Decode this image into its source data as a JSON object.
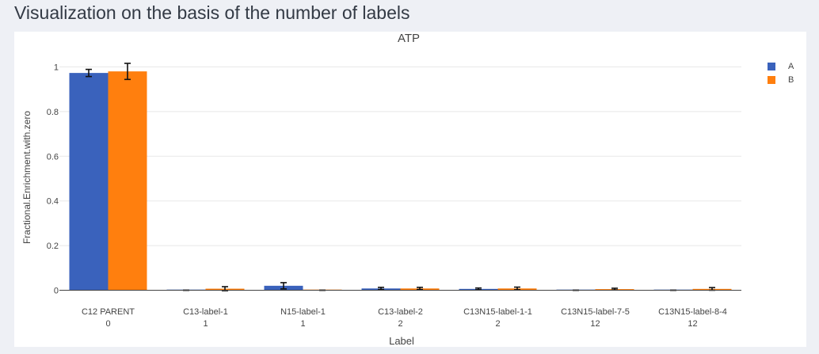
{
  "page": {
    "title": "Visualization on the basis of the number of labels"
  },
  "chart_data": {
    "type": "bar",
    "title": "ATP",
    "xlabel": "Label",
    "ylabel": "Fractional.Enrichment.with.zero",
    "ylim": [
      0,
      1.05
    ],
    "yticks": [
      0,
      0.2,
      0.4,
      0.6,
      0.8,
      1
    ],
    "ytick_labels": [
      "0",
      "0.2",
      "0.4",
      "0.6",
      "0.8",
      "1"
    ],
    "grid": true,
    "legend_position": "top-right",
    "categories": [
      {
        "name": "C12 PARENT",
        "count": "0"
      },
      {
        "name": "C13-label-1",
        "count": "1"
      },
      {
        "name": "N15-label-1",
        "count": "1"
      },
      {
        "name": "C13-label-2",
        "count": "2"
      },
      {
        "name": "C13N15-label-1-1",
        "count": "2"
      },
      {
        "name": "C13N15-label-7-5",
        "count": "12"
      },
      {
        "name": "C13N15-label-8-4",
        "count": "12"
      }
    ],
    "series": [
      {
        "name": "A",
        "color": "#3a62bc",
        "values": [
          0.973,
          0.0,
          0.02,
          0.008,
          0.006,
          0.0,
          0.0
        ],
        "errors": [
          0.016,
          0.0,
          0.014,
          0.005,
          0.004,
          0.0,
          0.0
        ]
      },
      {
        "name": "B",
        "color": "#ff7f0e",
        "values": [
          0.98,
          0.007,
          0.0,
          0.008,
          0.008,
          0.005,
          0.006
        ],
        "errors": [
          0.036,
          0.009,
          0.0,
          0.005,
          0.006,
          0.004,
          0.006
        ]
      }
    ]
  }
}
